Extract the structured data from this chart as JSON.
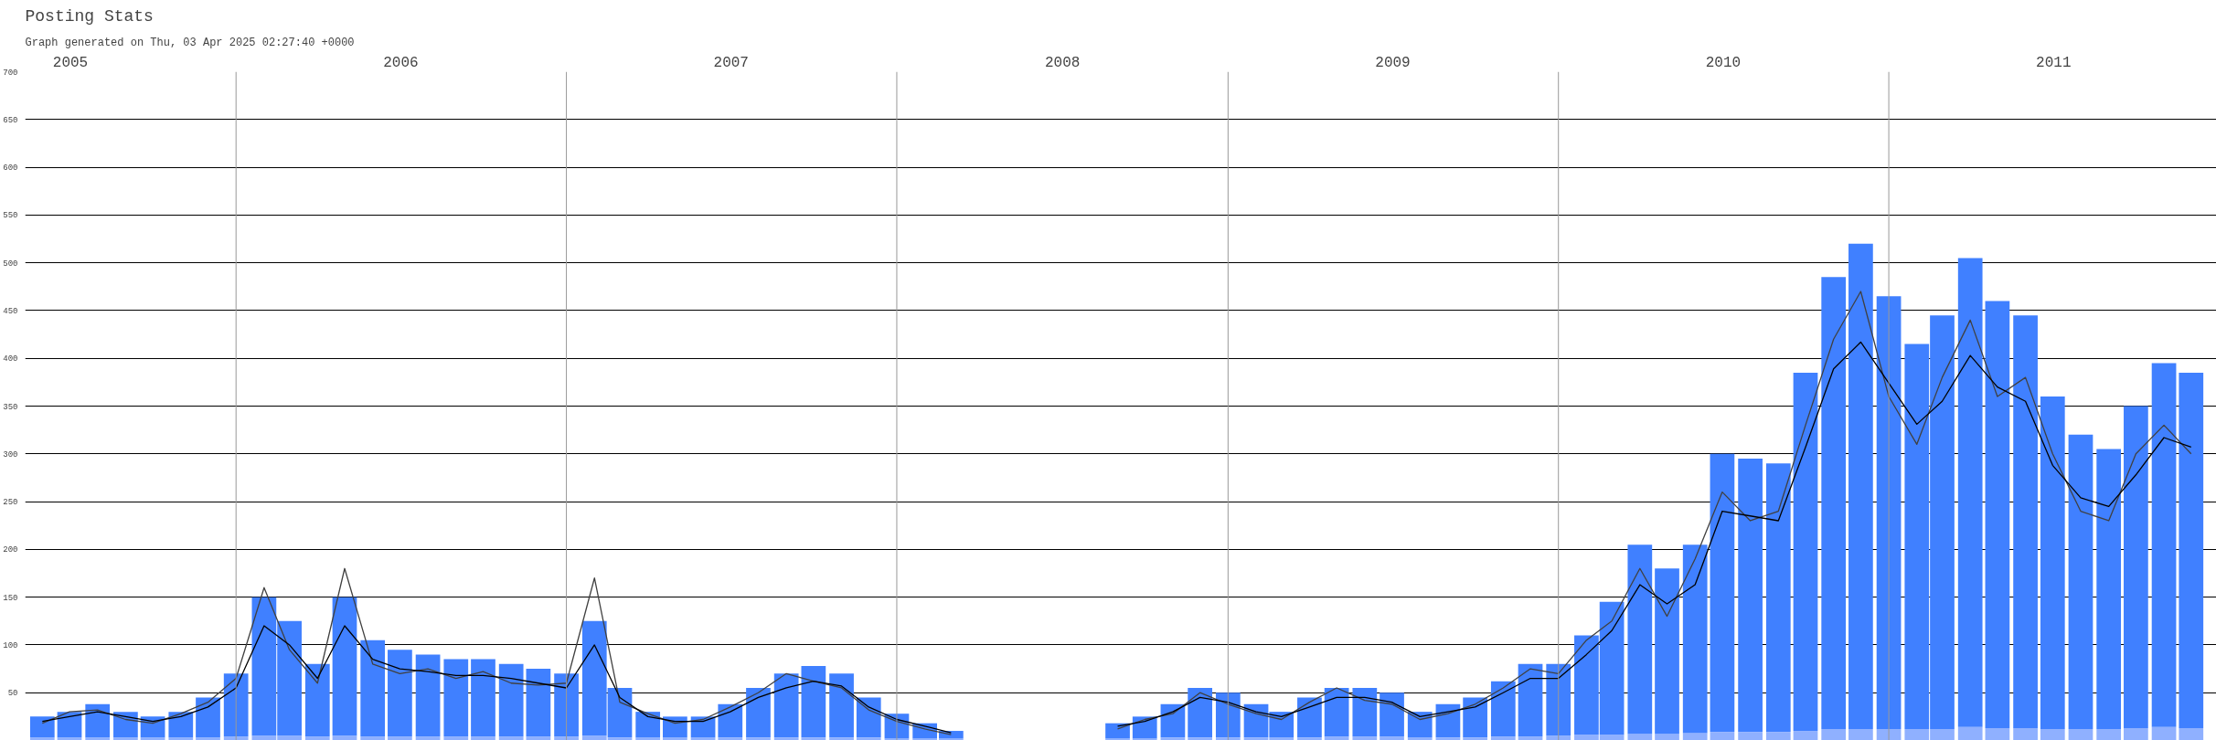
{
  "chart_data": {
    "type": "bar",
    "title": "Posting Stats",
    "subtitle": "Graph generated on Thu, 03 Apr 2025 02:27:40 +0000",
    "x": [
      "2005-06",
      "2005-07",
      "2005-08",
      "2005-09",
      "2005-10",
      "2005-11",
      "2005-12",
      "2006-01",
      "2006-02",
      "2006-03",
      "2006-04",
      "2006-05",
      "2006-06",
      "2006-07",
      "2006-08",
      "2006-09",
      "2006-10",
      "2006-11",
      "2006-12",
      "2007-01",
      "2007-02",
      "2007-03",
      "2007-04",
      "2007-05",
      "2007-06",
      "2007-07",
      "2007-08",
      "2007-09",
      "2007-10",
      "2007-11",
      "2007-12",
      "2008-01",
      "2008-02",
      "2008-03",
      "2008-04",
      "2008-05",
      "2008-06",
      "2008-07",
      "2008-08",
      "2008-09",
      "2008-10",
      "2008-11",
      "2008-12",
      "2009-01",
      "2009-02",
      "2009-03",
      "2009-04",
      "2009-05",
      "2009-06",
      "2009-07",
      "2009-08",
      "2009-09",
      "2009-10",
      "2009-11",
      "2009-12",
      "2010-01",
      "2010-02",
      "2010-03",
      "2010-04",
      "2010-05",
      "2010-06",
      "2010-07",
      "2010-08",
      "2010-09",
      "2010-10",
      "2010-11",
      "2010-12",
      "2011-01",
      "2011-02",
      "2011-03",
      "2011-04",
      "2011-05",
      "2011-06",
      "2011-07",
      "2011-08",
      "2011-09",
      "2011-10",
      "2011-11",
      "2011-12"
    ],
    "series": [
      {
        "color": "#8fb0ff",
        "values": [
          3,
          3,
          3,
          3,
          3,
          3,
          3,
          4,
          5,
          5,
          4,
          5,
          4,
          4,
          4,
          4,
          4,
          4,
          4,
          4,
          5,
          3,
          3,
          3,
          3,
          3,
          3,
          3,
          3,
          3,
          3,
          2,
          2,
          2,
          null,
          null,
          null,
          null,
          null,
          2,
          2,
          3,
          3,
          3,
          3,
          3,
          3,
          4,
          4,
          4,
          3,
          3,
          3,
          4,
          4,
          5,
          6,
          6,
          7,
          7,
          8,
          9,
          9,
          9,
          10,
          12,
          12,
          12,
          12,
          12,
          14,
          13,
          13,
          12,
          12,
          12,
          13,
          14,
          13
        ]
      },
      {
        "color": "#4080ff",
        "values": [
          22,
          27,
          35,
          27,
          22,
          27,
          42,
          66,
          145,
          120,
          76,
          145,
          101,
          91,
          86,
          81,
          81,
          76,
          71,
          66,
          120,
          52,
          27,
          22,
          22,
          35,
          52,
          67,
          75,
          67,
          42,
          26,
          16,
          8,
          null,
          null,
          null,
          null,
          null,
          16,
          23,
          35,
          52,
          47,
          35,
          27,
          42,
          51,
          51,
          46,
          27,
          35,
          42,
          58,
          76,
          75,
          104,
          139,
          198,
          173,
          197,
          291,
          286,
          281,
          375,
          473,
          508,
          453,
          403,
          433,
          491,
          447,
          432,
          348,
          308,
          293,
          337,
          381,
          372
        ]
      },
      {
        "type": "line",
        "color": "#404040",
        "values": [
          18,
          30,
          32,
          22,
          18,
          28,
          40,
          65,
          160,
          95,
          60,
          180,
          80,
          70,
          75,
          65,
          72,
          60,
          58,
          60,
          170,
          40,
          28,
          18,
          22,
          35,
          50,
          70,
          62,
          55,
          32,
          20,
          12,
          6,
          null,
          null,
          null,
          null,
          null,
          12,
          22,
          28,
          50,
          38,
          28,
          22,
          40,
          55,
          42,
          38,
          22,
          28,
          38,
          55,
          75,
          70,
          105,
          125,
          180,
          130,
          190,
          260,
          230,
          240,
          330,
          420,
          470,
          360,
          310,
          380,
          440,
          360,
          380,
          300,
          240,
          230,
          300,
          330,
          300
        ]
      },
      {
        "type": "line",
        "color": "#000000",
        "values": [
          20,
          25,
          30,
          25,
          20,
          25,
          35,
          55,
          120,
          100,
          65,
          120,
          85,
          75,
          72,
          68,
          68,
          65,
          60,
          55,
          100,
          45,
          25,
          20,
          20,
          30,
          45,
          55,
          62,
          57,
          35,
          22,
          15,
          8,
          null,
          null,
          null,
          null,
          null,
          15,
          20,
          30,
          45,
          40,
          30,
          25,
          35,
          45,
          45,
          40,
          25,
          30,
          35,
          50,
          65,
          65,
          90,
          115,
          163,
          143,
          163,
          240,
          235,
          230,
          307,
          389,
          417,
          374,
          331,
          355,
          403,
          370,
          355,
          288,
          254,
          245,
          278,
          317,
          307
        ]
      }
    ],
    "xlim": [
      "2005-05-13",
      "2011-12-29"
    ],
    "xticks": [
      {
        "value": "2005-07-02",
        "label": "2005"
      },
      {
        "value": "2006-07-02",
        "label": "2006"
      },
      {
        "value": "2007-07-02",
        "label": "2007"
      },
      {
        "value": "2008-07-02",
        "label": "2008"
      },
      {
        "value": "2009-07-02",
        "label": "2009"
      },
      {
        "value": "2010-07-02",
        "label": "2010"
      },
      {
        "value": "2011-07-02",
        "label": "2011"
      }
    ],
    "ylim": [
      0,
      700
    ],
    "yticks": [
      50,
      100,
      150,
      200,
      250,
      300,
      350,
      400,
      450,
      500,
      550,
      600,
      650,
      700
    ],
    "stacked": true,
    "grid": "y",
    "line_style": "solid",
    "marker": "none",
    "ref_lines": [
      {
        "axis": "x",
        "value": "2006-01-01",
        "color": "#999999"
      },
      {
        "axis": "x",
        "value": "2007-01-01",
        "color": "#999999"
      },
      {
        "axis": "x",
        "value": "2008-01-01",
        "color": "#999999"
      },
      {
        "axis": "x",
        "value": "2009-01-01",
        "color": "#999999"
      },
      {
        "axis": "x",
        "value": "2010-01-01",
        "color": "#999999"
      },
      {
        "axis": "x",
        "value": "2011-01-01",
        "color": "#999999"
      }
    ]
  }
}
